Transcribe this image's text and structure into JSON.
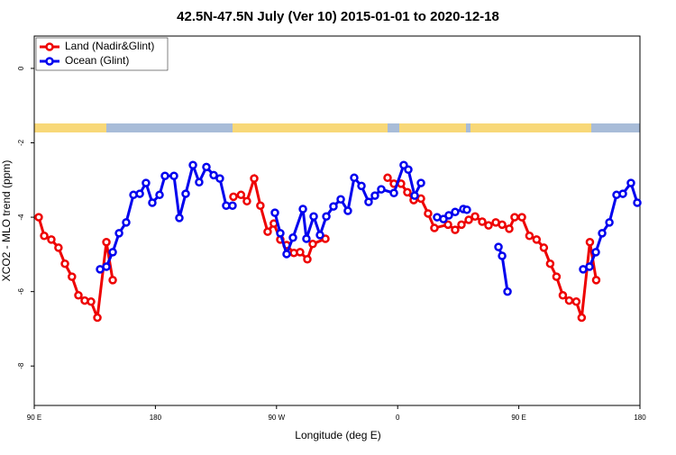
{
  "chart_data": {
    "type": "line",
    "title": "42.5N-47.5N July (Ver 10)   2015-01-01 to 2020-12-18",
    "xlabel": "Longitude (deg E)",
    "ylabel": "XCO2 - MLO trend (ppm)",
    "xlim": [
      90,
      540
    ],
    "ylim": [
      -9.06,
      0.87
    ],
    "xticks": [
      {
        "value": 90,
        "label": "90 E"
      },
      {
        "value": 180,
        "label": "180"
      },
      {
        "value": 270,
        "label": "90 W"
      },
      {
        "value": 360,
        "label": "0"
      },
      {
        "value": 450,
        "label": "90 E"
      },
      {
        "value": 540,
        "label": "180"
      }
    ],
    "yticks": [
      0,
      -2,
      -4,
      -6,
      -8
    ],
    "legend": "topleft",
    "series": [
      {
        "name": "Land (Nadir&Glint)",
        "color": "#ee0000",
        "x": [
          93.3,
          97.4,
          102.7,
          108,
          112.8,
          118,
          122.8,
          127.5,
          132.2,
          136.9,
          143.6,
          148.3,
          null,
          238,
          243.6,
          248,
          253.4,
          258,
          263.4,
          268,
          272.8,
          277.5,
          282.9,
          287.5,
          292.9,
          296.9,
          306.3,
          null,
          352.5,
          357.2,
          362.5,
          367.2,
          371.9,
          377.3,
          382.6,
          387.3,
          397.4,
          402.7,
          407.4,
          412.8,
          417.5,
          422.8,
          427.5,
          432.9,
          437.6,
          442.9,
          446.9,
          452.3,
          457.9,
          463.2,
          468.6,
          473.3,
          478,
          482.7,
          487.4,
          492.7,
          496.7,
          502.8,
          507.5
        ],
        "values": [
          -4.0,
          -4.5,
          -4.6,
          -4.82,
          -5.25,
          -5.6,
          -6.1,
          -6.24,
          -6.27,
          -6.7,
          -4.67,
          -5.69,
          null,
          -3.45,
          -3.4,
          -3.57,
          -2.96,
          -3.69,
          -4.39,
          -4.17,
          -4.6,
          -4.75,
          -4.96,
          -4.94,
          -5.13,
          -4.72,
          -4.58,
          null,
          -2.94,
          -3.1,
          -3.1,
          -3.33,
          -3.54,
          -3.5,
          -3.9,
          -4.29,
          -4.2,
          -4.34,
          -4.2,
          -4.07,
          -3.98,
          -4.12,
          -4.22,
          -4.14,
          -4.2,
          -4.31,
          -4.0,
          -4.0,
          -4.5,
          -4.6,
          -4.82,
          -5.25,
          -5.6,
          -6.1,
          -6.24,
          -6.27,
          -6.7,
          -4.67,
          -5.69
        ]
      },
      {
        "name": "Ocean (Glint)",
        "color": "#0000ee",
        "x": [
          138.9,
          143.6,
          148.3,
          153,
          158.3,
          163.7,
          168.4,
          173,
          177.7,
          183.1,
          187.1,
          193.8,
          197.8,
          202.5,
          207.9,
          212.5,
          217.9,
          223.3,
          227.9,
          232.6,
          237.3,
          null,
          268.8,
          272.8,
          277.5,
          282.2,
          289.6,
          292.2,
          297.6,
          302.3,
          307,
          312.3,
          317.7,
          323,
          327.7,
          333.1,
          338.4,
          343.1,
          347.8,
          357.2,
          364.5,
          367.9,
          372.6,
          377.3,
          null,
          389.3,
          394,
          398,
          402.7,
          408.8,
          411.4,
          null,
          434.9,
          437.6,
          441.6,
          null,
          497.8,
          502.5,
          507.2,
          511.9,
          517.3,
          522.6,
          527.3,
          533.3,
          538
        ],
        "values": [
          -5.4,
          -5.33,
          -4.94,
          -4.43,
          -4.14,
          -3.4,
          -3.37,
          -3.08,
          -3.61,
          -3.4,
          -2.89,
          -2.89,
          -4.02,
          -3.37,
          -2.6,
          -3.06,
          -2.65,
          -2.87,
          -2.96,
          -3.69,
          -3.69,
          null,
          -3.88,
          -4.43,
          -4.99,
          -4.55,
          -3.78,
          -4.58,
          -3.98,
          -4.48,
          -3.98,
          -3.71,
          -3.52,
          -3.83,
          -2.94,
          -3.16,
          -3.59,
          -3.42,
          -3.25,
          -3.35,
          -2.6,
          -2.72,
          -3.42,
          -3.08,
          null,
          -4.0,
          -4.05,
          -3.95,
          -3.86,
          -3.78,
          -3.8,
          null,
          -4.8,
          -5.04,
          -6.0,
          null,
          -5.4,
          -5.33,
          -4.94,
          -4.43,
          -4.14,
          -3.4,
          -3.37,
          -3.08,
          -3.61
        ]
      }
    ]
  }
}
